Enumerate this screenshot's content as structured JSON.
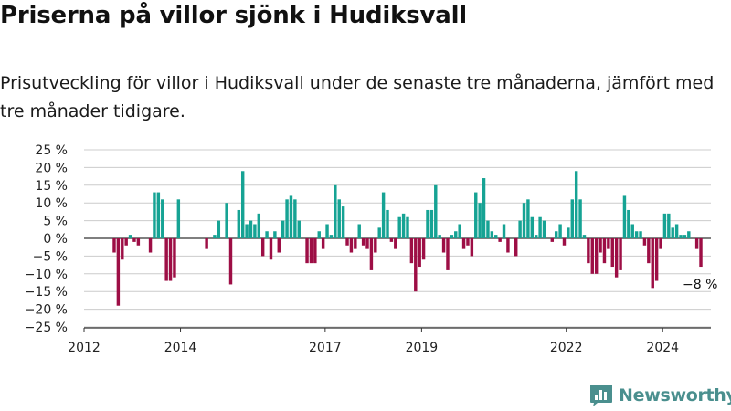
{
  "colors": {
    "positive": "#16a394",
    "negative": "#9d0e45",
    "axis": "#333333",
    "grid": "#cccccc",
    "brand": "#4a8f8e"
  },
  "brand": {
    "name": "Newsworthy",
    "icon": "bar-chart-speech-bubble-icon"
  },
  "chart_data": {
    "type": "bar",
    "title": "Priserna på villor sjönk i Hudiksvall",
    "subtitle": "Prisutveckling för villor i Hudiksvall under de senaste tre månaderna, jämfört med tre månader tidigare.",
    "xlabel": "",
    "ylabel": "",
    "x_ticks": [
      "2012",
      "2014",
      "2017",
      "2019",
      "2022",
      "2024"
    ],
    "y_ticks": [
      "25 %",
      "20 %",
      "15 %",
      "10 %",
      "5 %",
      "0 %",
      "−5 %",
      "−10 %",
      "−15 %",
      "−20 %",
      "−25 %"
    ],
    "ylim": [
      -25,
      25
    ],
    "grid": true,
    "annotation": "−8 %",
    "x": [
      "2012-01",
      "2012-02",
      "2012-03",
      "2012-04",
      "2012-05",
      "2012-06",
      "2012-07",
      "2012-08",
      "2012-09",
      "2012-10",
      "2012-11",
      "2012-12",
      "2013-01",
      "2013-02",
      "2013-03",
      "2013-04",
      "2013-05",
      "2013-06",
      "2013-07",
      "2013-08",
      "2013-09",
      "2013-10",
      "2013-11",
      "2013-12",
      "2014-01",
      "2014-02",
      "2014-03",
      "2014-04",
      "2014-05",
      "2014-06",
      "2014-07",
      "2014-08",
      "2014-09",
      "2014-10",
      "2014-11",
      "2014-12",
      "2015-01",
      "2015-02",
      "2015-03",
      "2015-04",
      "2015-05",
      "2015-06",
      "2015-07",
      "2015-08",
      "2015-09",
      "2015-10",
      "2015-11",
      "2015-12",
      "2016-01",
      "2016-02",
      "2016-03",
      "2016-04",
      "2016-05",
      "2016-06",
      "2016-07",
      "2016-08",
      "2016-09",
      "2016-10",
      "2016-11",
      "2016-12",
      "2017-01",
      "2017-02",
      "2017-03",
      "2017-04",
      "2017-05",
      "2017-06",
      "2017-07",
      "2017-08",
      "2017-09",
      "2017-10",
      "2017-11",
      "2017-12",
      "2018-01",
      "2018-02",
      "2018-03",
      "2018-04",
      "2018-05",
      "2018-06",
      "2018-07",
      "2018-08",
      "2018-09",
      "2018-10",
      "2018-11",
      "2018-12",
      "2019-01",
      "2019-02",
      "2019-03",
      "2019-04",
      "2019-05",
      "2019-06",
      "2019-07",
      "2019-08",
      "2019-09",
      "2019-10",
      "2019-11",
      "2019-12",
      "2020-01",
      "2020-02",
      "2020-03",
      "2020-04",
      "2020-05",
      "2020-06",
      "2020-07",
      "2020-08",
      "2020-09",
      "2020-10",
      "2020-11",
      "2020-12",
      "2021-01",
      "2021-02",
      "2021-03",
      "2021-04",
      "2021-05",
      "2021-06",
      "2021-07",
      "2021-08",
      "2021-09",
      "2021-10",
      "2021-11",
      "2021-12",
      "2022-01",
      "2022-02",
      "2022-03",
      "2022-04",
      "2022-05",
      "2022-06",
      "2022-07",
      "2022-08",
      "2022-09",
      "2022-10",
      "2022-11",
      "2022-12",
      "2023-01",
      "2023-02",
      "2023-03",
      "2023-04",
      "2023-05",
      "2023-06",
      "2023-07",
      "2023-08",
      "2023-09",
      "2023-10",
      "2023-11",
      "2023-12",
      "2024-01",
      "2024-02",
      "2024-03",
      "2024-04",
      "2024-05",
      "2024-06",
      "2024-07",
      "2024-08",
      "2024-09",
      "2024-10",
      "2024-11",
      "2024-12"
    ],
    "values": [
      null,
      null,
      null,
      null,
      null,
      null,
      null,
      -4,
      -19,
      -6,
      -2,
      1,
      -1,
      -2,
      null,
      null,
      -4,
      13,
      13,
      11,
      -12,
      -12,
      -11,
      11,
      null,
      null,
      null,
      null,
      null,
      null,
      -3,
      null,
      1,
      5,
      null,
      10,
      -13,
      null,
      8,
      19,
      4,
      5,
      4,
      7,
      -5,
      2,
      -6,
      2,
      -4,
      5,
      11,
      12,
      11,
      5,
      null,
      -7,
      -7,
      -7,
      2,
      -3,
      4,
      1,
      15,
      11,
      9,
      -2,
      -4,
      -3,
      4,
      -2,
      -3,
      -9,
      -4,
      3,
      13,
      8,
      -1,
      -3,
      6,
      7,
      6,
      -7,
      -15,
      -8,
      -6,
      8,
      8,
      15,
      1,
      -4,
      -9,
      1,
      2,
      4,
      -3,
      -2,
      -5,
      13,
      10,
      17,
      5,
      2,
      1,
      -1,
      4,
      -4,
      null,
      -5,
      5,
      10,
      11,
      6,
      1,
      6,
      5,
      null,
      -1,
      2,
      4,
      -2,
      3,
      11,
      19,
      11,
      1,
      -7,
      -10,
      -10,
      -4,
      -7,
      -3,
      -8,
      -11,
      -9,
      12,
      8,
      4,
      2,
      2,
      -2,
      -7,
      -14,
      -12,
      -3,
      7,
      7,
      3,
      4,
      1,
      1,
      2,
      null,
      -3,
      -8,
      null,
      null
    ]
  }
}
